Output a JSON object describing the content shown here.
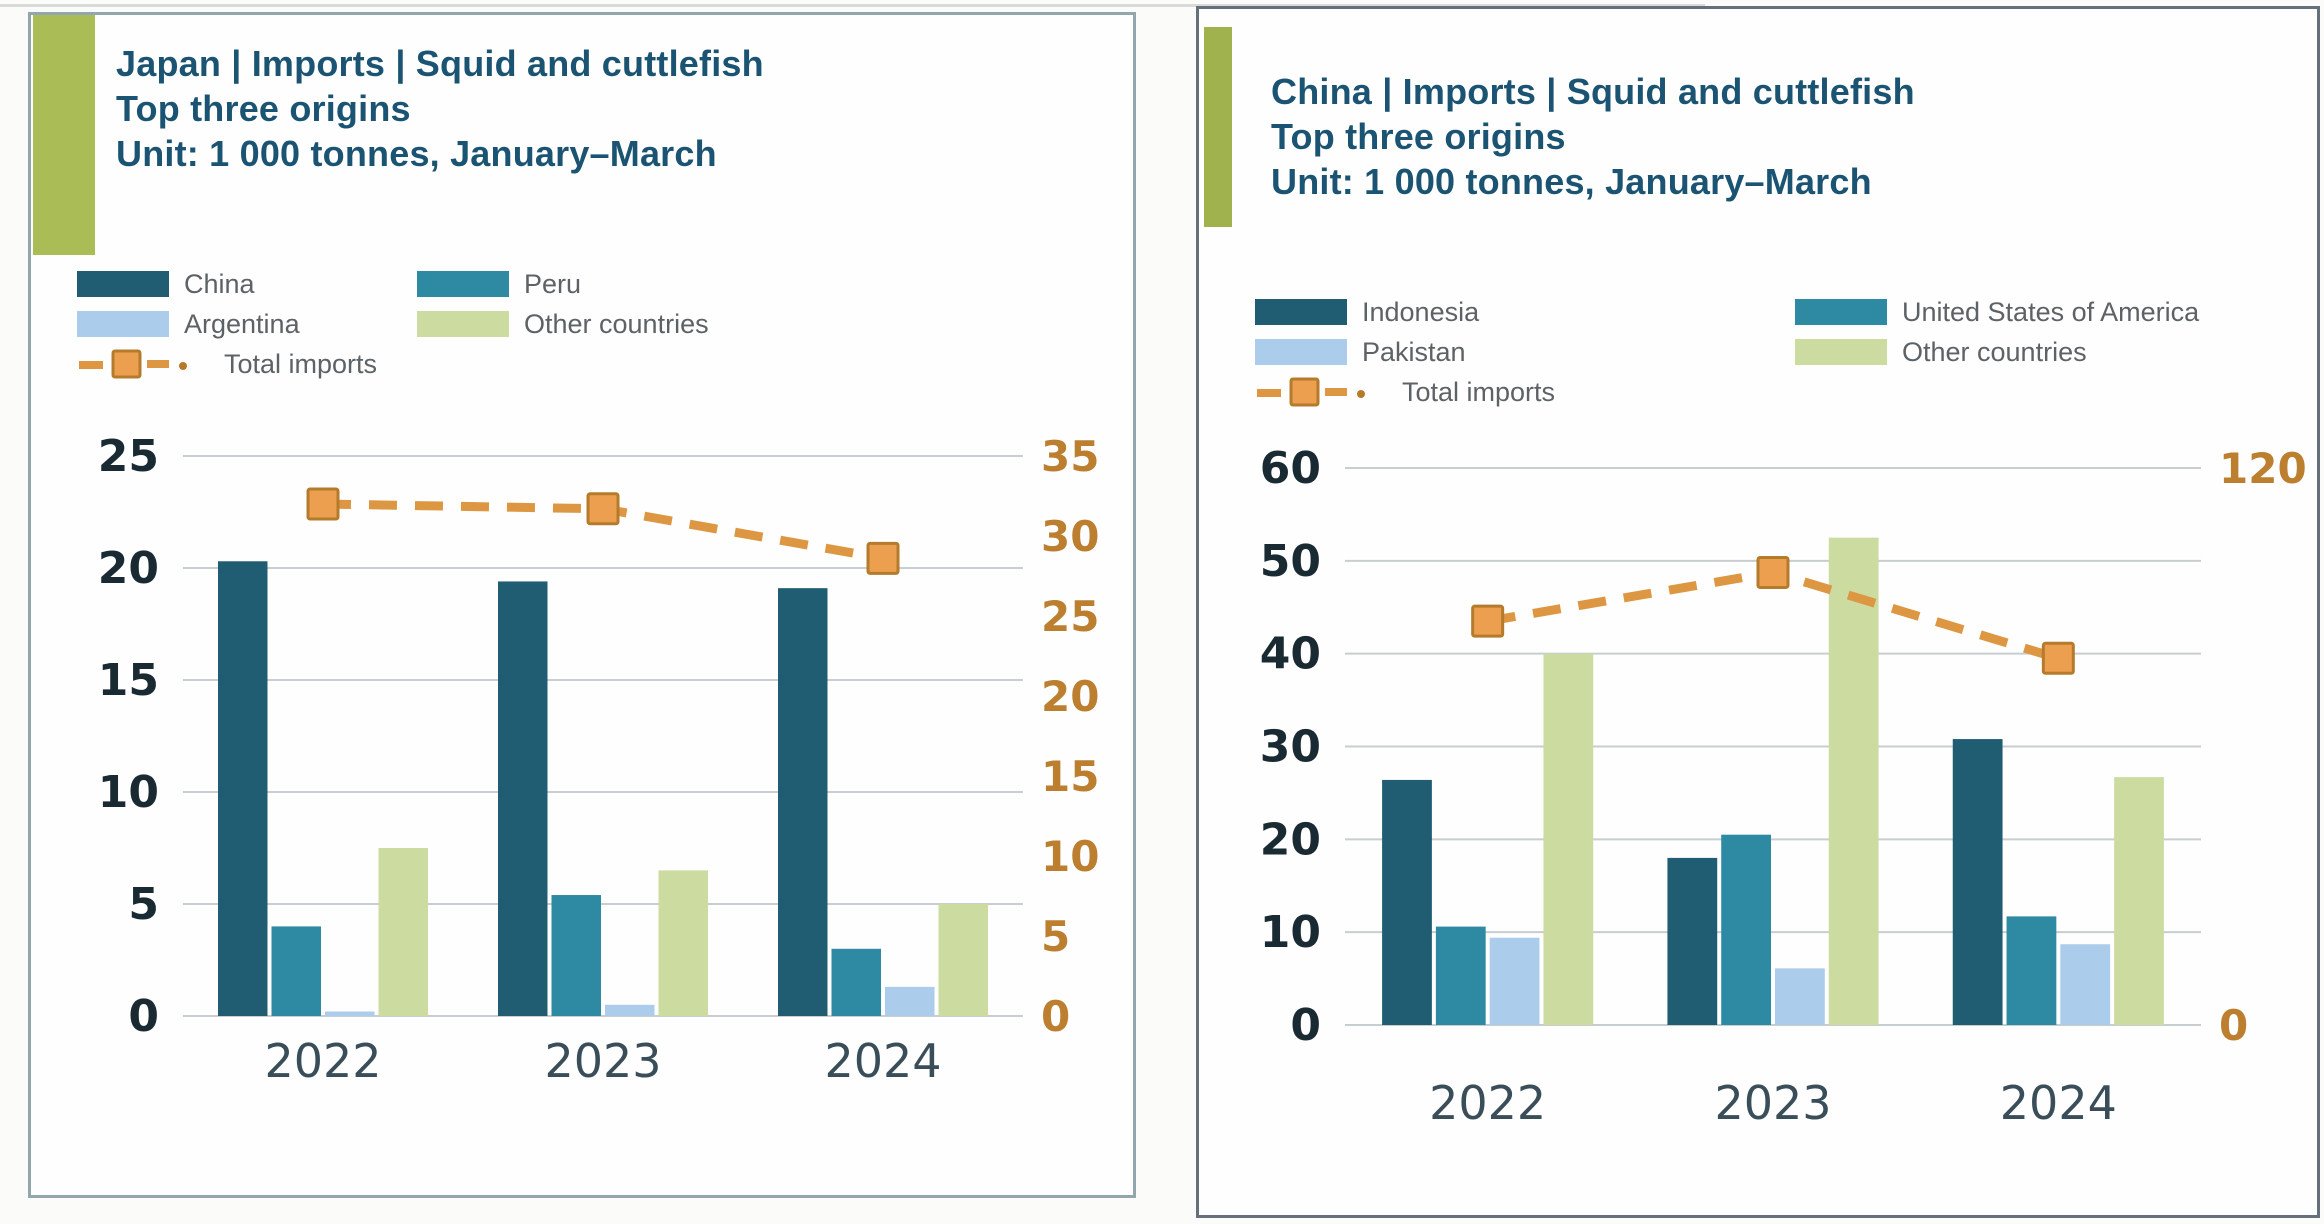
{
  "palette": {
    "series_colors": [
      "#205d72",
      "#2e8aa3",
      "#abccea",
      "#ccdba0"
    ],
    "line": "#dd9742",
    "marker_fill": "#ec9f4f",
    "marker_stroke": "#b57b2c",
    "grid": "#c8cdd0",
    "left_tick_text": "#1a2a33",
    "right_tick_text": "#bc7f2f",
    "year_label_text": "#3a4e5a",
    "title_text": "#1b5472",
    "legend_text": "#5d6266",
    "accent_tab_left": "#a9bc55",
    "accent_tab_right": "#9fb24d"
  },
  "chart_data": [
    {
      "type": "bar+line",
      "title": "Japan | Imports | Squid and cuttlefish",
      "subtitle": "Top three origins",
      "unit_label": "Unit: 1 000 tonnes, January–March",
      "categories": [
        "2022",
        "2023",
        "2024"
      ],
      "series": [
        {
          "name": "China",
          "values": [
            20.3,
            19.4,
            19.1
          ]
        },
        {
          "name": "Peru",
          "values": [
            4.0,
            5.4,
            3.0
          ]
        },
        {
          "name": "Argentina",
          "values": [
            0.2,
            0.5,
            1.3
          ]
        },
        {
          "name": "Other countries",
          "values": [
            7.5,
            6.5,
            5.0
          ]
        }
      ],
      "line_series": {
        "name": "Total imports",
        "axis": "right",
        "values": [
          32.0,
          31.7,
          28.6
        ]
      },
      "left_axis": {
        "min": 0,
        "max": 25,
        "step": 5
      },
      "right_axis": {
        "min": 0,
        "max": 35,
        "labels_shown": [
          0,
          5,
          10,
          15,
          20,
          25,
          30,
          35
        ]
      },
      "grid": true,
      "legend_position": "top-left"
    },
    {
      "type": "bar+line",
      "title": "China | Imports | Squid and cuttlefish",
      "subtitle": "Top three origins",
      "unit_label": "Unit: 1 000 tonnes, January–March",
      "categories": [
        "2022",
        "2023",
        "2024"
      ],
      "series": [
        {
          "name": "Indonesia",
          "values": [
            26.4,
            18.0,
            30.8
          ]
        },
        {
          "name": "United States of America",
          "values": [
            10.6,
            20.5,
            11.7
          ]
        },
        {
          "name": "Pakistan",
          "values": [
            9.4,
            6.1,
            8.7
          ]
        },
        {
          "name": "Other countries",
          "values": [
            40.0,
            52.5,
            26.7
          ]
        }
      ],
      "line_series": {
        "name": "Total imports",
        "axis": "right",
        "values": [
          87.0,
          97.5,
          79.0
        ]
      },
      "left_axis": {
        "min": 0,
        "max": 60,
        "step": 10
      },
      "right_axis": {
        "min": 0,
        "max": 120,
        "labels_shown": [
          0,
          120
        ]
      },
      "grid": true,
      "legend_position": "top-left"
    }
  ]
}
